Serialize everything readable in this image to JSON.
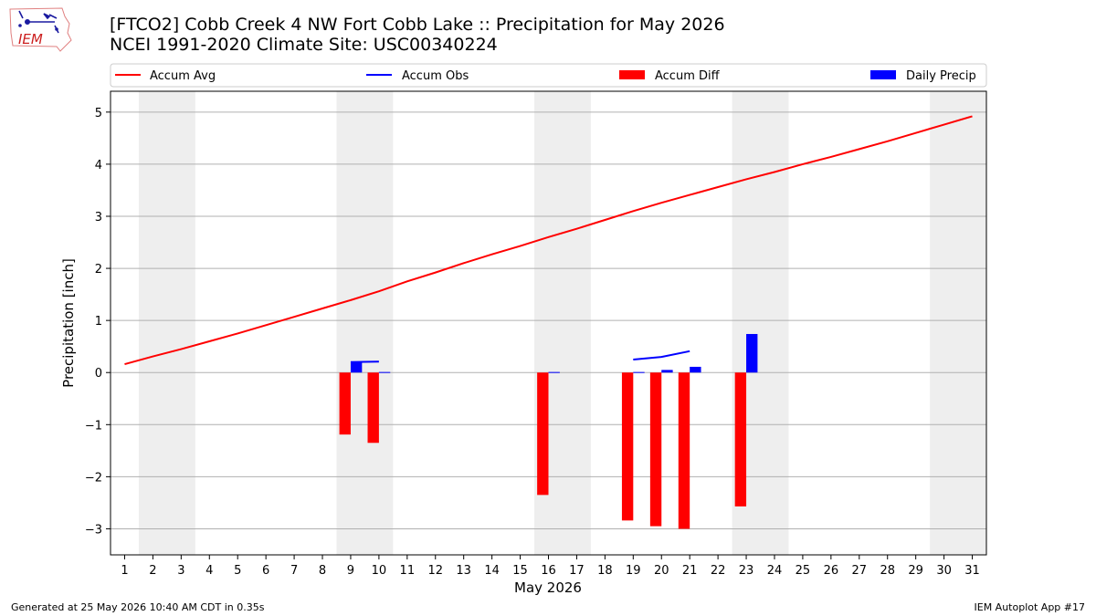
{
  "header": {
    "title_line1": "[FTCO2] Cobb Creek 4 NW Fort Cobb Lake :: Precipitation for May 2026",
    "title_line2": "NCEI 1991-2020 Climate Site: USC00340224"
  },
  "logo": {
    "text": "IEM"
  },
  "footer": {
    "generated": "Generated at 25 May 2026 10:40 AM CDT in 0.35s",
    "app": "IEM Autoplot App #17"
  },
  "colors": {
    "accum_avg": "#ff0000",
    "accum_obs": "#0000ff",
    "accum_diff": "#ff0000",
    "daily_precip": "#0000ff",
    "weekend_shade": "#eeeeee",
    "grid": "#b0b0b0"
  },
  "chart_data": {
    "type": "bar",
    "xlabel": "May 2026",
    "ylabel": "Precipitation [inch]",
    "ylim": [
      -3.5,
      5.4
    ],
    "xlim": [
      0.5,
      31.5
    ],
    "yticks": [
      5,
      4,
      3,
      2,
      1,
      0,
      -1,
      -2,
      -3
    ],
    "ytick_labels": [
      "5",
      "4",
      "3",
      "2",
      "1",
      "0",
      "−1",
      "−2",
      "−3"
    ],
    "x": [
      1,
      2,
      3,
      4,
      5,
      6,
      7,
      8,
      9,
      10,
      11,
      12,
      13,
      14,
      15,
      16,
      17,
      18,
      19,
      20,
      21,
      22,
      23,
      24,
      25,
      26,
      27,
      28,
      29,
      30,
      31
    ],
    "xtick_labels": [
      "1",
      "2",
      "3",
      "4",
      "5",
      "6",
      "7",
      "8",
      "9",
      "10",
      "11",
      "12",
      "13",
      "14",
      "15",
      "16",
      "17",
      "18",
      "19",
      "20",
      "21",
      "22",
      "23",
      "24",
      "25",
      "26",
      "27",
      "28",
      "29",
      "30",
      "31"
    ],
    "grid": "horizontal",
    "legend_position": "top",
    "weekend_bands": [
      [
        1.5,
        3.5
      ],
      [
        8.5,
        10.5
      ],
      [
        15.5,
        17.5
      ],
      [
        22.5,
        24.5
      ],
      [
        29.5,
        31.5
      ]
    ],
    "legend": [
      "Accum Avg",
      "Accum Obs",
      "Accum Diff",
      "Daily Precip"
    ],
    "series": [
      {
        "name": "Accum Avg",
        "type": "line",
        "x": [
          1,
          2,
          3,
          4,
          5,
          6,
          7,
          8,
          9,
          10,
          11,
          12,
          13,
          14,
          15,
          16,
          17,
          18,
          19,
          20,
          21,
          22,
          23,
          24,
          25,
          26,
          27,
          28,
          29,
          30,
          31
        ],
        "values": [
          0.16,
          0.31,
          0.45,
          0.6,
          0.75,
          0.91,
          1.07,
          1.23,
          1.39,
          1.56,
          1.75,
          1.92,
          2.1,
          2.27,
          2.43,
          2.6,
          2.76,
          2.93,
          3.1,
          3.26,
          3.41,
          3.56,
          3.71,
          3.85,
          4.0,
          4.14,
          4.29,
          4.44,
          4.6,
          4.76,
          4.92
        ]
      },
      {
        "name": "Accum Obs",
        "type": "line",
        "segments": [
          {
            "x": [
              9,
              10
            ],
            "values": [
              0.2,
              0.21
            ]
          },
          {
            "x": [
              19,
              20,
              21
            ],
            "values": [
              0.25,
              0.3,
              0.41
            ]
          }
        ]
      },
      {
        "name": "Accum Diff",
        "type": "bar",
        "x": [
          9,
          10,
          16,
          19,
          20,
          21,
          23
        ],
        "values": [
          -1.19,
          -1.35,
          -2.35,
          -2.84,
          -2.95,
          -3.0,
          -2.57
        ]
      },
      {
        "name": "Daily Precip",
        "type": "bar",
        "x": [
          9,
          10,
          16,
          19,
          20,
          21,
          23
        ],
        "values": [
          0.2,
          0.01,
          0.01,
          0.01,
          0.05,
          0.11,
          0.74
        ]
      }
    ]
  }
}
